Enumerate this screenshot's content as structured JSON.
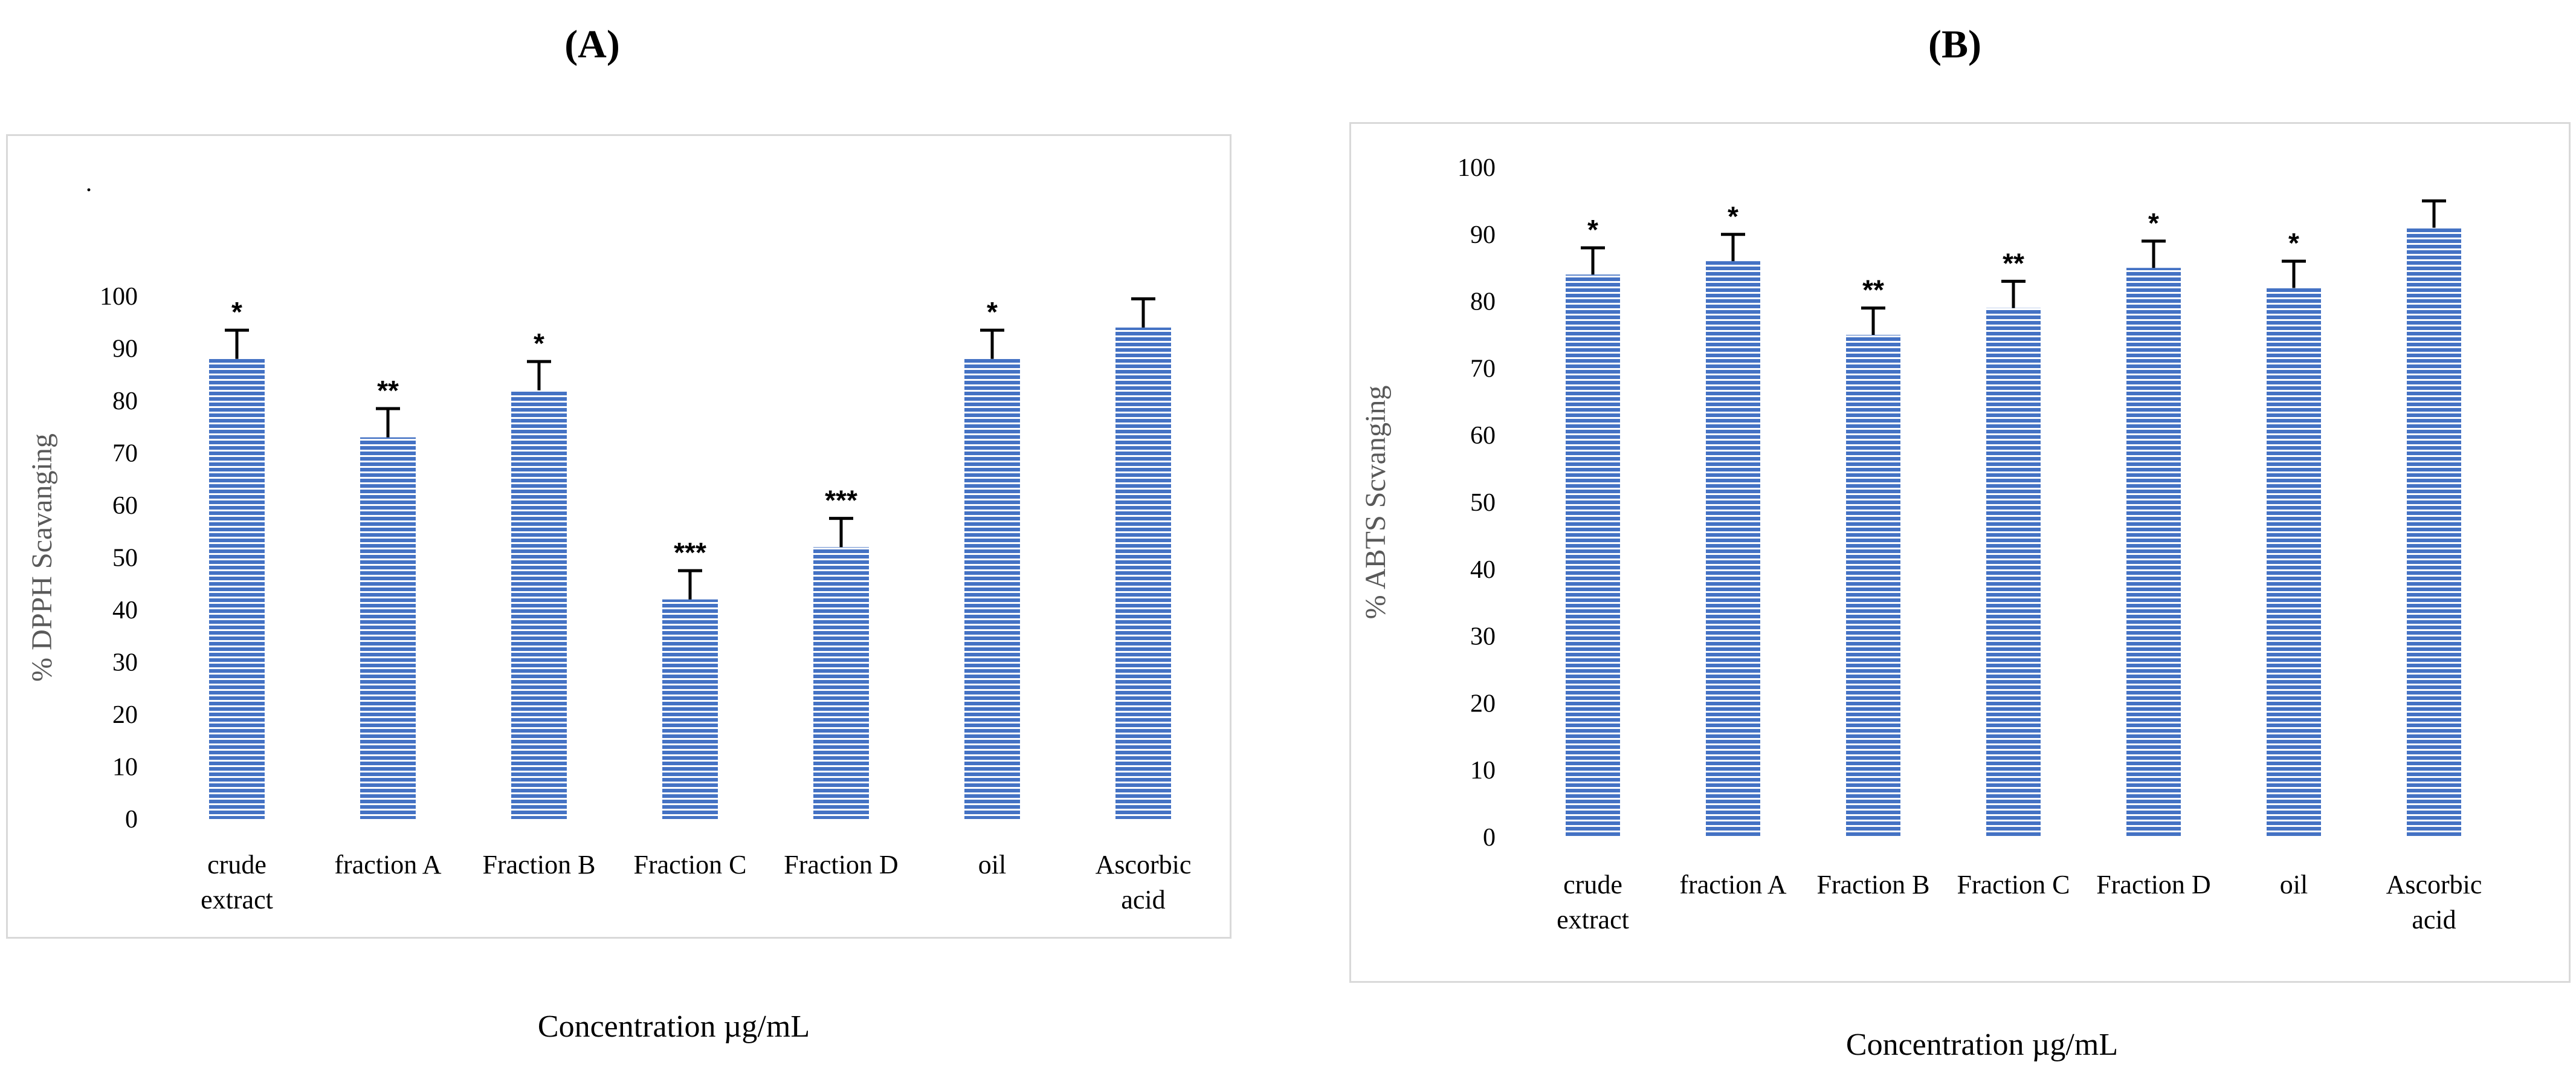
{
  "colors": {
    "bar_fill": "#4472c4",
    "bar_stripe": "#ffffff",
    "error_bar": "#000000",
    "frame": "#d9d9d9"
  },
  "chart_data": [
    {
      "panel_label": "(A)",
      "type": "bar",
      "categories": [
        "crude extract",
        "fraction A",
        "Fraction B",
        "Fraction C",
        "Fraction D",
        "oil",
        "Ascorbic acid"
      ],
      "category_lines": [
        [
          "crude",
          "extract"
        ],
        [
          "fraction A"
        ],
        [
          "Fraction B"
        ],
        [
          "Fraction C"
        ],
        [
          "Fraction D"
        ],
        [
          "oil"
        ],
        [
          "Ascorbic",
          "acid"
        ]
      ],
      "values": [
        88,
        73,
        82,
        42,
        52,
        88,
        94
      ],
      "errors": [
        5.5,
        5.5,
        5.5,
        5.5,
        5.5,
        5.5,
        5.5
      ],
      "significance": [
        "*",
        "**",
        "*",
        "***",
        "***",
        "*",
        ""
      ],
      "ylabel": "% DPPH Scavanging",
      "xlabel": "Concentration  µg/mL",
      "ylim": [
        0,
        100
      ],
      "yticks": [
        0,
        10,
        20,
        30,
        40,
        50,
        60,
        70,
        80,
        90,
        100
      ],
      "grid": false,
      "stray_mark": "·"
    },
    {
      "panel_label": "(B)",
      "type": "bar",
      "categories": [
        "crude extract",
        "fraction A",
        "Fraction B",
        "Fraction C",
        "Fraction D",
        "oil",
        "Ascorbic acid"
      ],
      "category_lines": [
        [
          "crude",
          "extract"
        ],
        [
          "fraction A"
        ],
        [
          "Fraction B"
        ],
        [
          "Fraction C"
        ],
        [
          "Fraction D"
        ],
        [
          "oil"
        ],
        [
          "Ascorbic",
          "acid"
        ]
      ],
      "values": [
        84,
        86,
        75,
        79,
        85,
        82,
        91
      ],
      "errors": [
        4,
        4,
        4,
        4,
        4,
        4,
        4
      ],
      "significance": [
        "*",
        "*",
        "**",
        "**",
        "*",
        "*",
        ""
      ],
      "ylabel": "% ABTS Scvanging",
      "xlabel": "Concentration  µg/mL",
      "ylim": [
        0,
        100
      ],
      "yticks": [
        0,
        10,
        20,
        30,
        40,
        50,
        60,
        70,
        80,
        90,
        100
      ],
      "grid": false
    }
  ]
}
